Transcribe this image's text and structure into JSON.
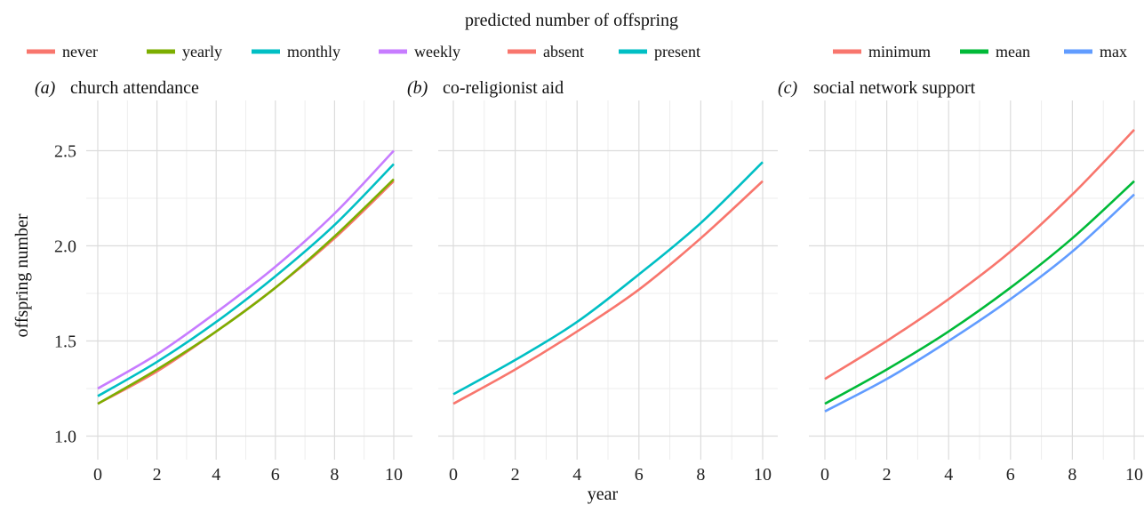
{
  "figure_title": "predicted number of offspring",
  "shared_xlabel": "year",
  "shared_ylabel": "offspring number",
  "legends": [
    {
      "entries": [
        {
          "label": "never",
          "color": "#F8766D"
        },
        {
          "label": "yearly",
          "color": "#7CAE00"
        },
        {
          "label": "monthly",
          "color": "#00BFC4"
        },
        {
          "label": "weekly",
          "color": "#C77CFF"
        }
      ]
    },
    {
      "entries": [
        {
          "label": "absent",
          "color": "#F8766D"
        },
        {
          "label": "present",
          "color": "#00BFC4"
        }
      ]
    },
    {
      "entries": [
        {
          "label": "minimum",
          "color": "#F8766D"
        },
        {
          "label": "mean",
          "color": "#00BA38"
        },
        {
          "label": "max",
          "color": "#619CFF"
        }
      ]
    }
  ],
  "chart_data": [
    {
      "type": "line",
      "panel": "(a)",
      "title": "church attendance",
      "xlim": [
        0,
        10
      ],
      "ylim": [
        0.95,
        2.7
      ],
      "xticks": [
        0,
        2,
        4,
        6,
        8,
        10
      ],
      "yticks": [
        1.0,
        1.5,
        2.0,
        2.5
      ],
      "grid": true,
      "series": [
        {
          "name": "never",
          "color": "#F8766D",
          "x": [
            0,
            2,
            4,
            6,
            8,
            10
          ],
          "values": [
            1.17,
            1.34,
            1.55,
            1.78,
            2.04,
            2.34
          ]
        },
        {
          "name": "monthly",
          "color": "#00BFC4",
          "x": [
            0,
            2,
            4,
            6,
            8,
            10
          ],
          "values": [
            1.21,
            1.39,
            1.6,
            1.84,
            2.11,
            2.43
          ]
        },
        {
          "name": "weekly",
          "color": "#C77CFF",
          "x": [
            0,
            2,
            4,
            6,
            8,
            10
          ],
          "values": [
            1.25,
            1.43,
            1.65,
            1.89,
            2.17,
            2.5
          ]
        },
        {
          "name": "yearly",
          "color": "#7CAE00",
          "x": [
            0,
            2,
            4,
            6,
            8,
            10
          ],
          "values": [
            1.17,
            1.35,
            1.55,
            1.78,
            2.05,
            2.35
          ]
        }
      ]
    },
    {
      "type": "line",
      "panel": "(b)",
      "title": "co-religionist aid",
      "xlim": [
        0,
        10
      ],
      "ylim": [
        0.95,
        2.7
      ],
      "xticks": [
        0,
        2,
        4,
        6,
        8,
        10
      ],
      "yticks": [
        1.0,
        1.5,
        2.0,
        2.5
      ],
      "grid": true,
      "series": [
        {
          "name": "absent",
          "color": "#F8766D",
          "x": [
            0,
            2,
            4,
            6,
            8,
            10
          ],
          "values": [
            1.17,
            1.35,
            1.55,
            1.77,
            2.04,
            2.34
          ]
        },
        {
          "name": "present",
          "color": "#00BFC4",
          "x": [
            0,
            2,
            4,
            6,
            8,
            10
          ],
          "values": [
            1.22,
            1.4,
            1.6,
            1.85,
            2.12,
            2.44
          ]
        }
      ]
    },
    {
      "type": "line",
      "panel": "(c)",
      "title": "social network support",
      "xlim": [
        0,
        10
      ],
      "ylim": [
        0.95,
        2.7
      ],
      "xticks": [
        0,
        2,
        4,
        6,
        8,
        10
      ],
      "yticks": [
        1.0,
        1.5,
        2.0,
        2.5
      ],
      "grid": true,
      "series": [
        {
          "name": "minimum",
          "color": "#F8766D",
          "x": [
            0,
            2,
            4,
            6,
            8,
            10
          ],
          "values": [
            1.3,
            1.5,
            1.72,
            1.97,
            2.27,
            2.61
          ]
        },
        {
          "name": "mean",
          "color": "#00BA38",
          "x": [
            0,
            2,
            4,
            6,
            8,
            10
          ],
          "values": [
            1.17,
            1.35,
            1.55,
            1.78,
            2.04,
            2.34
          ]
        },
        {
          "name": "max",
          "color": "#619CFF",
          "x": [
            0,
            2,
            4,
            6,
            8,
            10
          ],
          "values": [
            1.13,
            1.3,
            1.5,
            1.72,
            1.97,
            2.27
          ]
        }
      ]
    }
  ]
}
